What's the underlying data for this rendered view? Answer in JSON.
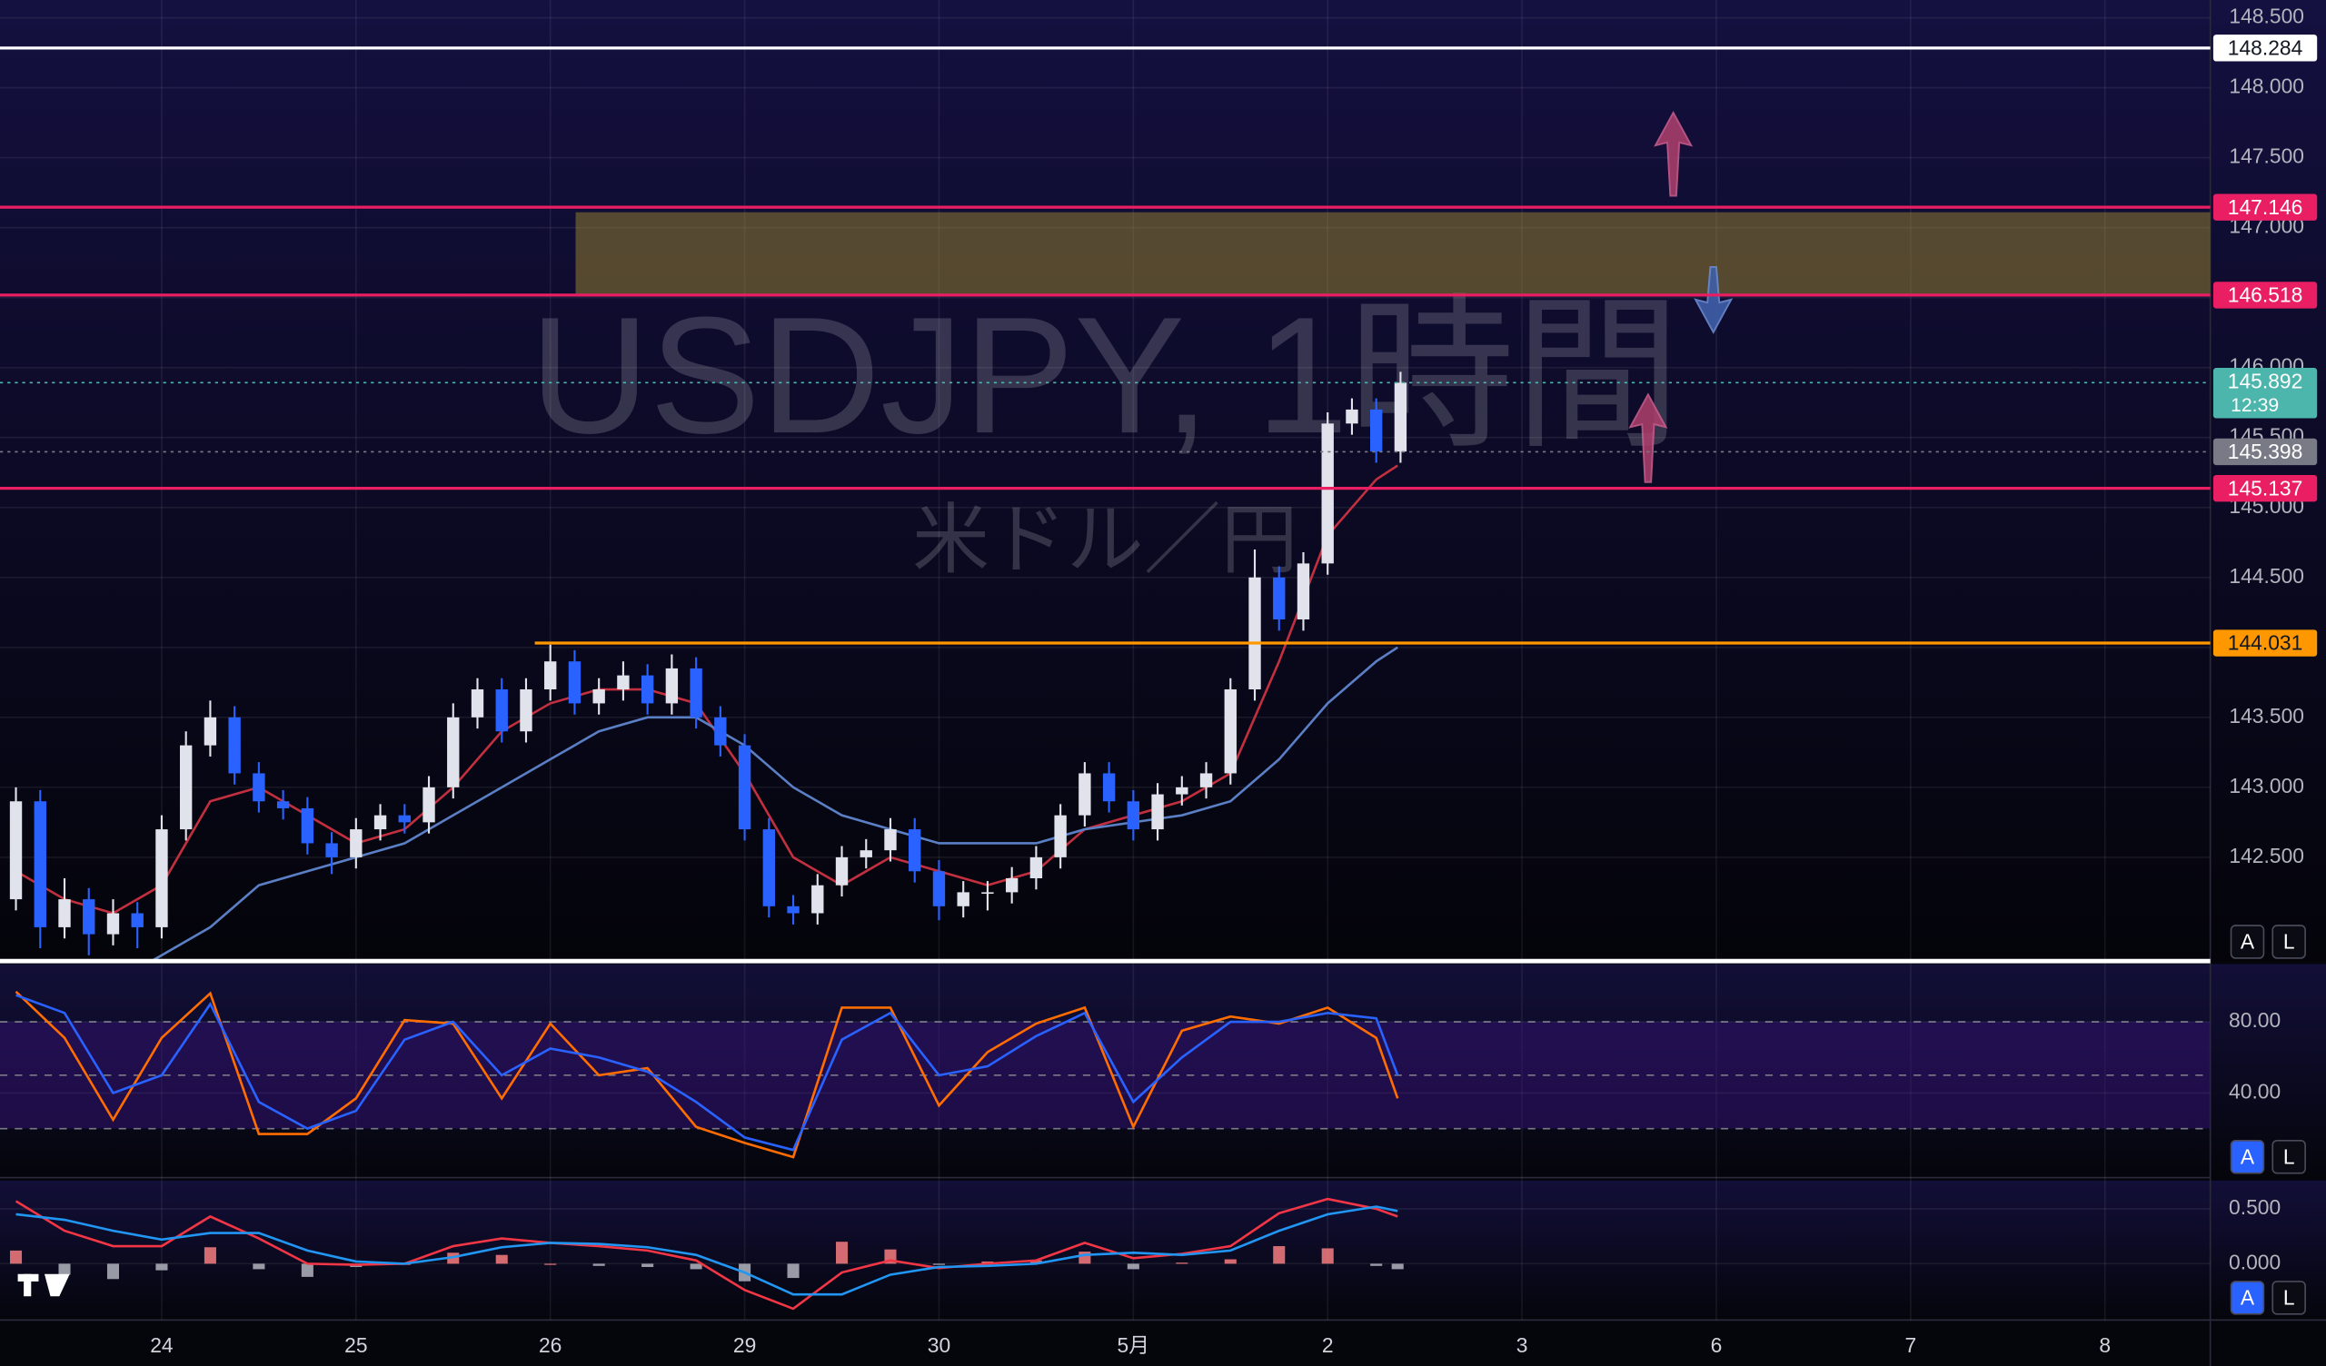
{
  "chart_data": {
    "type": "candlestick",
    "title": "USDJPY, 1時間",
    "subtitle": "米ドル／円",
    "up_color": "#e0e3eb",
    "down_color": "#2962ff",
    "xlim": [
      -0.832,
      10.542
    ],
    "xticks": [
      {
        "value": 0,
        "label": "24"
      },
      {
        "value": 1,
        "label": "25"
      },
      {
        "value": 2,
        "label": "26"
      },
      {
        "value": 3,
        "label": "29"
      },
      {
        "value": 4,
        "label": "30"
      },
      {
        "value": 5,
        "label": "5月"
      },
      {
        "value": 6,
        "label": "2"
      },
      {
        "value": 7,
        "label": "3"
      },
      {
        "value": 8,
        "label": "6"
      },
      {
        "value": 9,
        "label": "7"
      },
      {
        "value": 10,
        "label": "8"
      }
    ],
    "ylim": [
      141.758,
      148.627
    ],
    "yticks": [
      {
        "value": 148.5,
        "label": "148.500"
      },
      {
        "value": 148,
        "label": "148.000"
      },
      {
        "value": 147.5,
        "label": "147.500"
      },
      {
        "value": 147,
        "label": "147.000"
      },
      {
        "value": 146.5,
        "label": "146.500"
      },
      {
        "value": 146,
        "label": "146.000"
      },
      {
        "value": 145.5,
        "label": "145.500"
      },
      {
        "value": 145,
        "label": "145.000"
      },
      {
        "value": 144.5,
        "label": "144.500"
      },
      {
        "value": 144,
        "label": "144.000"
      },
      {
        "value": 143.5,
        "label": "143.500"
      },
      {
        "value": 143,
        "label": "143.000"
      },
      {
        "value": 142.5,
        "label": "142.500"
      }
    ],
    "grid": true,
    "x": [
      -0.75,
      -0.625,
      -0.5,
      -0.375,
      -0.25,
      -0.125,
      0,
      0.125,
      0.25,
      0.375,
      0.5,
      0.625,
      0.75,
      0.875,
      1,
      1.125,
      1.25,
      1.375,
      1.5,
      1.625,
      1.75,
      1.875,
      2,
      2.125,
      2.25,
      2.375,
      2.5,
      2.625,
      2.75,
      2.875,
      3,
      3.125,
      3.25,
      3.375,
      3.5,
      3.625,
      3.75,
      3.875,
      4,
      4.125,
      4.25,
      4.375,
      4.5,
      4.625,
      4.75,
      4.875,
      5,
      5.125,
      5.25,
      5.375,
      5.5,
      5.625,
      5.75,
      5.875,
      6,
      6.125,
      6.25,
      6.375
    ],
    "candles": [
      [
        142.2,
        143.0,
        142.12,
        142.9
      ],
      [
        142.9,
        142.98,
        141.85,
        142.0
      ],
      [
        142.0,
        142.35,
        141.92,
        142.2
      ],
      [
        142.2,
        142.28,
        141.8,
        141.95
      ],
      [
        141.95,
        142.2,
        141.87,
        142.1
      ],
      [
        142.1,
        142.18,
        141.85,
        142.0
      ],
      [
        142.0,
        142.8,
        141.92,
        142.7
      ],
      [
        142.7,
        143.4,
        142.62,
        143.3
      ],
      [
        143.3,
        143.62,
        143.22,
        143.5
      ],
      [
        143.5,
        143.58,
        143.02,
        143.1
      ],
      [
        143.1,
        143.18,
        142.82,
        142.9
      ],
      [
        142.9,
        142.98,
        142.77,
        142.85
      ],
      [
        142.85,
        142.93,
        142.52,
        142.6
      ],
      [
        142.6,
        142.68,
        142.38,
        142.5
      ],
      [
        142.5,
        142.78,
        142.42,
        142.7
      ],
      [
        142.7,
        142.88,
        142.62,
        142.8
      ],
      [
        142.8,
        142.88,
        142.67,
        142.75
      ],
      [
        142.75,
        143.08,
        142.67,
        143.0
      ],
      [
        143.0,
        143.6,
        142.92,
        143.5
      ],
      [
        143.5,
        143.78,
        143.42,
        143.7
      ],
      [
        143.7,
        143.78,
        143.32,
        143.4
      ],
      [
        143.4,
        143.78,
        143.32,
        143.7
      ],
      [
        143.7,
        144.02,
        143.62,
        143.9
      ],
      [
        143.9,
        143.98,
        143.52,
        143.6
      ],
      [
        143.6,
        143.78,
        143.52,
        143.7
      ],
      [
        143.7,
        143.9,
        143.62,
        143.8
      ],
      [
        143.8,
        143.88,
        143.52,
        143.6
      ],
      [
        143.6,
        143.95,
        143.52,
        143.85
      ],
      [
        143.85,
        143.93,
        143.42,
        143.5
      ],
      [
        143.5,
        143.58,
        143.22,
        143.3
      ],
      [
        143.3,
        143.38,
        142.62,
        142.7
      ],
      [
        142.7,
        142.78,
        142.07,
        142.15
      ],
      [
        142.15,
        142.23,
        142.02,
        142.1
      ],
      [
        142.1,
        142.38,
        142.02,
        142.3
      ],
      [
        142.3,
        142.58,
        142.22,
        142.5
      ],
      [
        142.5,
        142.63,
        142.42,
        142.55
      ],
      [
        142.55,
        142.78,
        142.47,
        142.7
      ],
      [
        142.7,
        142.78,
        142.32,
        142.4
      ],
      [
        142.4,
        142.48,
        142.05,
        142.15
      ],
      [
        142.15,
        142.33,
        142.07,
        142.25
      ],
      [
        142.25,
        142.33,
        142.12,
        142.25
      ],
      [
        142.25,
        142.43,
        142.17,
        142.35
      ],
      [
        142.35,
        142.58,
        142.27,
        142.5
      ],
      [
        142.5,
        142.88,
        142.42,
        142.8
      ],
      [
        142.8,
        143.18,
        142.72,
        143.1
      ],
      [
        143.1,
        143.18,
        142.82,
        142.9
      ],
      [
        142.9,
        142.98,
        142.62,
        142.7
      ],
      [
        142.7,
        143.03,
        142.62,
        142.95
      ],
      [
        142.95,
        143.08,
        142.87,
        143.0
      ],
      [
        143.0,
        143.18,
        142.92,
        143.1
      ],
      [
        143.1,
        143.78,
        143.02,
        143.7
      ],
      [
        143.7,
        144.7,
        143.62,
        144.5
      ],
      [
        144.5,
        144.58,
        144.12,
        144.2
      ],
      [
        144.2,
        144.68,
        144.12,
        144.6
      ],
      [
        144.6,
        145.68,
        144.52,
        145.6
      ],
      [
        145.6,
        145.78,
        145.52,
        145.7
      ],
      [
        145.7,
        145.78,
        145.32,
        145.4
      ],
      [
        145.4,
        145.97,
        145.32,
        145.892
      ]
    ],
    "countdown": "12:39",
    "last_color": "#4db6ac",
    "indicator_x": [
      -0.75,
      -0.5,
      -0.25,
      0,
      0.25,
      0.5,
      0.75,
      1,
      1.25,
      1.5,
      1.75,
      2,
      2.25,
      2.5,
      2.75,
      3,
      3.25,
      3.5,
      3.75,
      4,
      4.25,
      4.5,
      4.75,
      5,
      5.25,
      5.5,
      5.75,
      6,
      6.25,
      6.36
    ],
    "moving_averages": [
      {
        "color": "#c2303f",
        "values": [
          142.4,
          142.2,
          142.1,
          142.3,
          142.9,
          143.0,
          142.8,
          142.6,
          142.7,
          143.0,
          143.4,
          143.6,
          143.7,
          143.7,
          143.6,
          143.1,
          142.5,
          142.3,
          142.5,
          142.4,
          142.3,
          142.4,
          142.7,
          142.8,
          142.9,
          143.1,
          143.9,
          144.8,
          145.2,
          145.3
        ]
      },
      {
        "color": "#5b7fc4",
        "values": [
          141.4,
          141.5,
          141.6,
          141.8,
          142.0,
          142.3,
          142.4,
          142.5,
          142.6,
          142.8,
          143.0,
          143.2,
          143.4,
          143.5,
          143.5,
          143.3,
          143.0,
          142.8,
          142.7,
          142.6,
          142.6,
          142.6,
          142.7,
          142.75,
          142.8,
          142.9,
          143.2,
          143.6,
          143.9,
          144.0
        ]
      }
    ],
    "levels": [
      {
        "value": 148.284,
        "color": "#ffffff",
        "text_color": "#131722"
      },
      {
        "value": 147.146,
        "color": "#e91e63",
        "text_color": "#ffffff"
      },
      {
        "value": 146.518,
        "color": "#e91e63",
        "text_color": "#ffffff"
      },
      {
        "value": 145.398,
        "color": "#787b86",
        "text_color": "#ffffff",
        "dotted": true
      },
      {
        "value": 145.137,
        "color": "#e91e63",
        "text_color": "#ffffff"
      },
      {
        "value": 144.031,
        "color": "#ff9800",
        "text_color": "#131722",
        "start": 1.92
      }
    ],
    "zone": {
      "low": 146.52,
      "high": 147.11,
      "start": 2.13,
      "color": "#9c8530"
    },
    "stochastic": {
      "ylim": [
        -4.2,
        110.8
      ],
      "yticks": [
        {
          "value": 80,
          "label": "80.00"
        },
        {
          "value": 40,
          "label": "40.00"
        }
      ],
      "band": [
        20,
        80
      ],
      "midline": 50,
      "k": {
        "color": "#ff6d00",
        "values": [
          97,
          71,
          25,
          71,
          96,
          17,
          17,
          37,
          81,
          79,
          37,
          79,
          50,
          54,
          21,
          12,
          4,
          88,
          88,
          33,
          63,
          79,
          88,
          21,
          75,
          83,
          79,
          88,
          71,
          37
        ]
      },
      "d": {
        "color": "#2962ff",
        "values": [
          95,
          85,
          40,
          50,
          90,
          35,
          20,
          30,
          70,
          80,
          50,
          65,
          60,
          52,
          35,
          15,
          8,
          70,
          85,
          50,
          55,
          72,
          85,
          35,
          60,
          80,
          80,
          85,
          82,
          50
        ]
      }
    },
    "macd": {
      "ylim": [
        -0.486,
        0.73
      ],
      "yticks": [
        {
          "value": 0.5,
          "label": "0.500"
        },
        {
          "value": 0,
          "label": "0.000"
        }
      ],
      "macd": {
        "color": "#f23645",
        "values": [
          0.57,
          0.3,
          0.16,
          0.16,
          0.43,
          0.23,
          0,
          -0.01,
          0,
          0.16,
          0.23,
          0.19,
          0.16,
          0.12,
          0.03,
          -0.24,
          -0.41,
          -0.08,
          0.03,
          -0.04,
          0,
          0.03,
          0.19,
          0.05,
          0.09,
          0.16,
          0.46,
          0.59,
          0.5,
          0.43
        ]
      },
      "signal": {
        "color": "#2196f3",
        "values": [
          0.45,
          0.4,
          0.3,
          0.22,
          0.28,
          0.28,
          0.12,
          0.02,
          0,
          0.06,
          0.15,
          0.19,
          0.18,
          0.15,
          0.08,
          -0.08,
          -0.28,
          -0.28,
          -0.1,
          -0.03,
          -0.02,
          0,
          0.08,
          0.1,
          0.08,
          0.12,
          0.3,
          0.45,
          0.52,
          0.48
        ]
      },
      "histogram": {
        "up_color": "#f77c80",
        "down_color": "#b2b5be",
        "values": [
          0.12,
          -0.1,
          -0.14,
          -0.06,
          0.15,
          -0.05,
          -0.12,
          -0.03,
          0,
          0.1,
          0.08,
          0,
          -0.02,
          -0.03,
          -0.05,
          -0.16,
          -0.13,
          0.2,
          0.13,
          -0.01,
          0.02,
          0.03,
          0.11,
          -0.05,
          0.01,
          0.04,
          0.16,
          0.14,
          -0.02,
          -0.05
        ]
      }
    },
    "buttons": [
      {
        "labels": [
          "A",
          "L"
        ],
        "active": false
      },
      {
        "labels": [
          "A",
          "L"
        ],
        "active": true
      },
      {
        "labels": [
          "A",
          "L"
        ],
        "active": true
      }
    ]
  }
}
